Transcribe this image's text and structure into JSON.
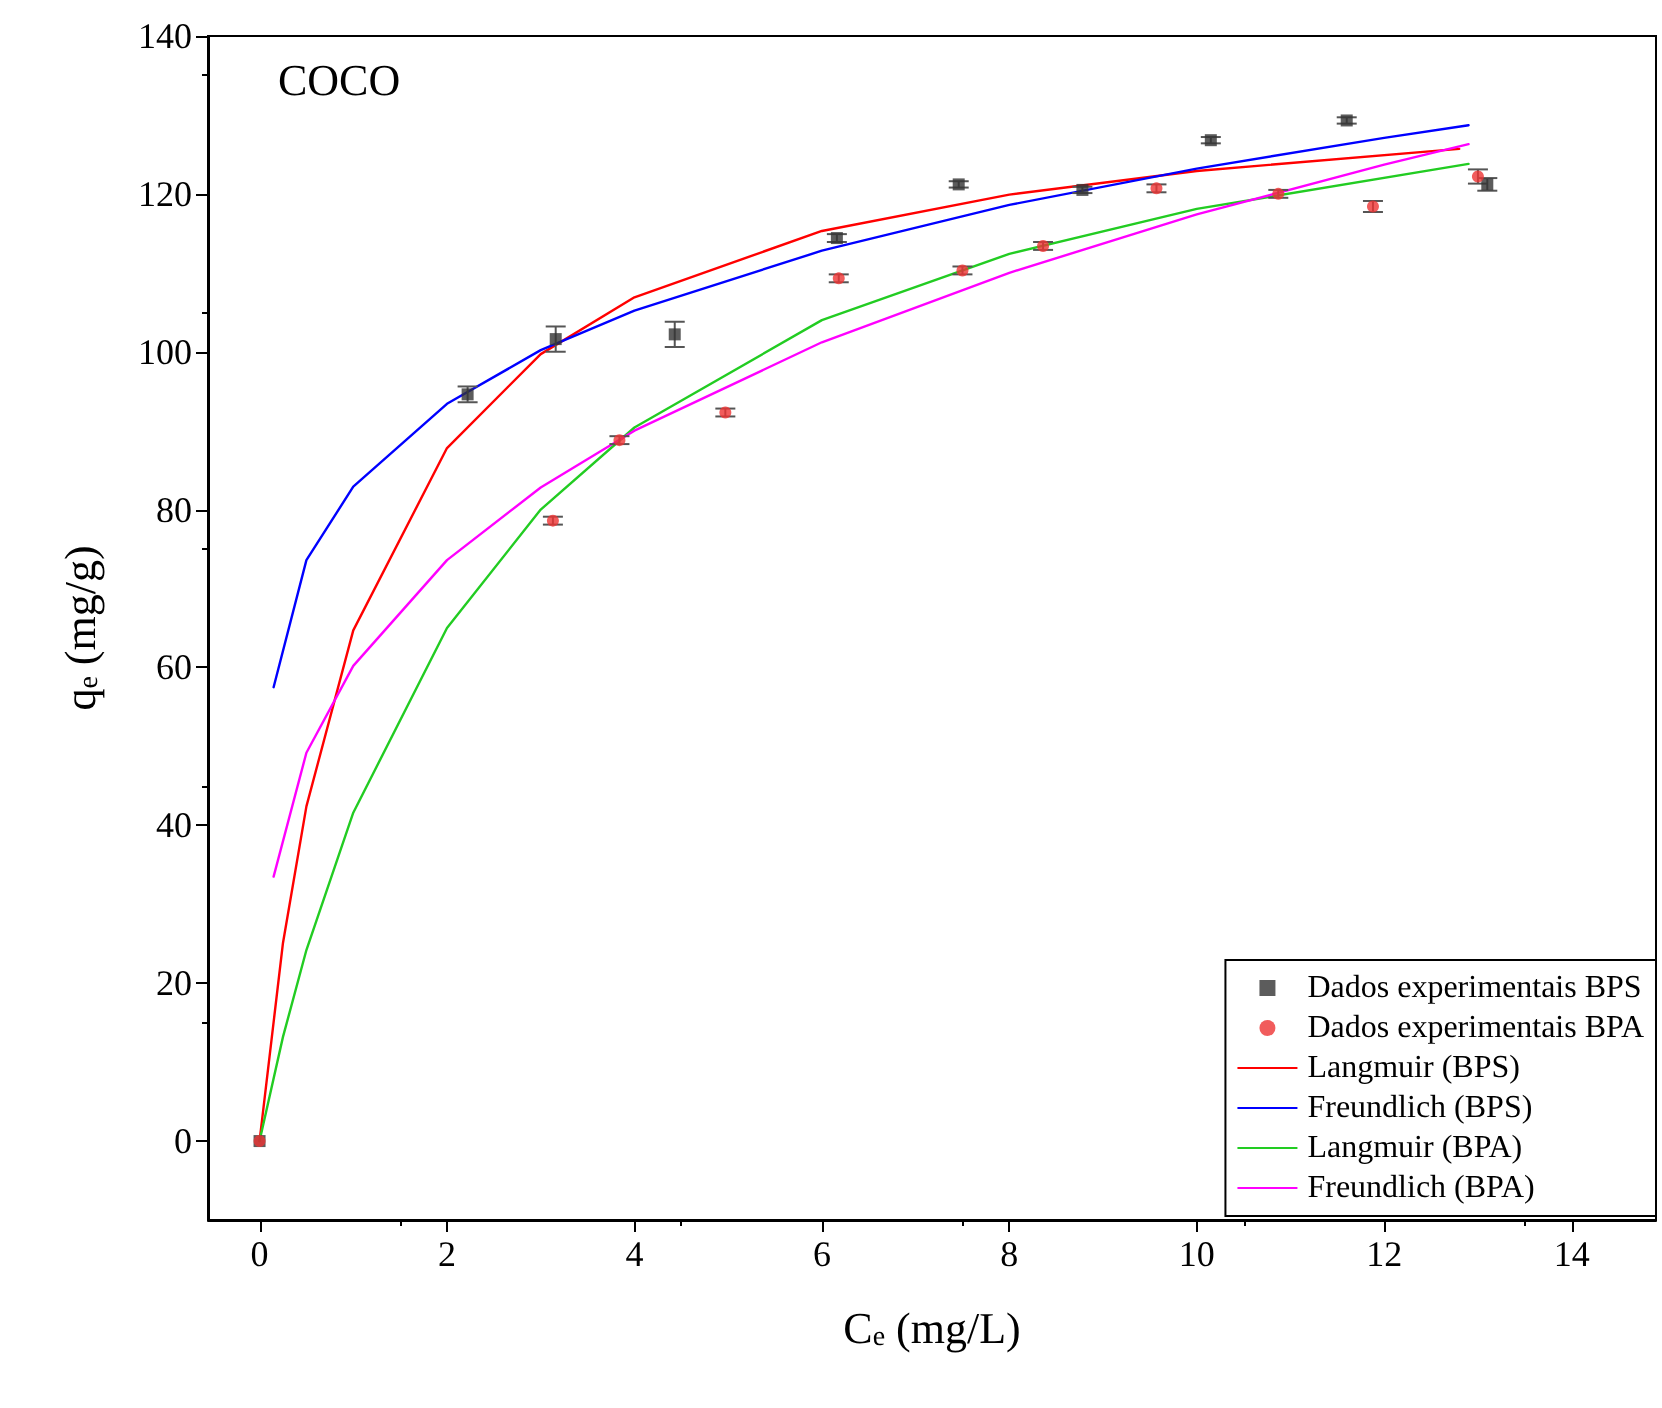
{
  "chart_data": {
    "type": "scatter",
    "title": "COCO",
    "xlabel": "C$_{e}$ (mg/L)",
    "ylabel": "q$_{e}$ (mg/g)",
    "xlim": [
      -0.55,
      14.9
    ],
    "ylim": [
      -10,
      140
    ],
    "xticks": [
      0,
      2,
      4,
      6,
      8,
      10,
      12,
      14
    ],
    "yticks": [
      0,
      20,
      40,
      60,
      80,
      100,
      120,
      140
    ],
    "grid": false,
    "legend": "bottom right",
    "series": [
      {
        "name": "Dados experimentais BPS",
        "marker": "square",
        "color": "#333333",
        "x": [
          0,
          2.22,
          3.16,
          4.43,
          6.16,
          7.46,
          8.78,
          10.15,
          11.6,
          13.1
        ],
        "values": [
          0,
          94.6,
          101.6,
          102.2,
          114.4,
          121.2,
          120.5,
          126.8,
          129.3,
          121.2
        ],
        "errors": [
          null,
          1,
          1.6,
          1.6,
          0.5,
          0.4,
          0.4,
          0.4,
          0.4,
          0.8
        ]
      },
      {
        "name": "Dados experimentais BPA",
        "marker": "circle",
        "color": "#ee3333",
        "x": [
          0,
          3.13,
          3.84,
          4.97,
          6.18,
          7.5,
          8.36,
          9.57,
          10.87,
          11.88,
          13.0
        ],
        "values": [
          0,
          78.6,
          88.8,
          92.3,
          109.3,
          110.3,
          113.4,
          120.7,
          120,
          118.4,
          122.2
        ],
        "errors": [
          null,
          0.5,
          0.5,
          0.5,
          0.5,
          0.5,
          0.5,
          0.5,
          0.5,
          0.7,
          0.9
        ]
      },
      {
        "name": "Langmuir (BPS)",
        "type": "line",
        "marker": "none",
        "color": "#ff0000",
        "x": [
          0,
          0.25,
          0.5,
          1,
          2,
          3,
          4,
          6,
          8,
          10,
          12.8
        ],
        "values": [
          0,
          25.1,
          42.4,
          64.7,
          87.8,
          99.7,
          106.9,
          115.3,
          119.9,
          122.9,
          125.7
        ]
      },
      {
        "name": "Freundlich (BPS)",
        "type": "line",
        "marker": "none",
        "color": "#0000ff",
        "x": [
          0.15,
          0.5,
          1,
          2,
          3,
          4,
          6,
          8,
          10,
          12,
          12.9
        ],
        "values": [
          57.5,
          73.6,
          82.9,
          93.4,
          100.2,
          105.2,
          112.8,
          118.6,
          123.2,
          127.1,
          128.7
        ]
      },
      {
        "name": "Langmuir (BPA)",
        "type": "line",
        "marker": "none",
        "color": "#22cc22",
        "x": [
          0,
          0.25,
          0.5,
          1,
          2,
          3,
          4,
          6,
          8,
          10,
          12.9
        ],
        "values": [
          0,
          13.2,
          24.2,
          41.6,
          65,
          80,
          90.4,
          104,
          112.4,
          118.1,
          123.8
        ]
      },
      {
        "name": "Freundlich (BPA)",
        "type": "line",
        "marker": "none",
        "color": "#ff00ff",
        "x": [
          0.15,
          0.5,
          1,
          2,
          3,
          4,
          6,
          8,
          10,
          12,
          12.9
        ],
        "values": [
          33.5,
          49.2,
          60.2,
          73.6,
          82.8,
          90,
          101.2,
          110,
          117.4,
          123.7,
          126.3
        ]
      }
    ]
  }
}
